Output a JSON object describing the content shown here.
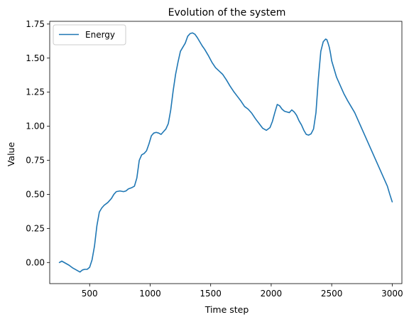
{
  "chart_data": {
    "type": "line",
    "title": "Evolution of the system",
    "xlabel": "Time step",
    "ylabel": "Value",
    "xlim": [
      170,
      3080
    ],
    "ylim": [
      -0.155,
      1.77
    ],
    "xticks": [
      500,
      1000,
      1500,
      2000,
      2500,
      3000
    ],
    "xtick_labels": [
      "500",
      "1000",
      "1500",
      "2000",
      "2500",
      "3000"
    ],
    "yticks": [
      0.0,
      0.25,
      0.5,
      0.75,
      1.0,
      1.25,
      1.5,
      1.75
    ],
    "ytick_labels": [
      "0.00",
      "0.25",
      "0.50",
      "0.75",
      "1.00",
      "1.25",
      "1.50",
      "1.75"
    ],
    "grid": false,
    "legend_position": "top-left",
    "series": [
      {
        "name": "Energy",
        "color": "#1f77b4",
        "x": [
          250,
          270,
          300,
          330,
          360,
          390,
          420,
          440,
          460,
          480,
          500,
          520,
          540,
          560,
          580,
          600,
          620,
          650,
          680,
          700,
          720,
          750,
          780,
          800,
          820,
          850,
          870,
          890,
          910,
          930,
          950,
          970,
          990,
          1010,
          1030,
          1050,
          1070,
          1090,
          1110,
          1130,
          1150,
          1170,
          1190,
          1210,
          1230,
          1250,
          1270,
          1290,
          1310,
          1330,
          1350,
          1370,
          1390,
          1410,
          1430,
          1450,
          1480,
          1510,
          1540,
          1570,
          1600,
          1630,
          1660,
          1690,
          1720,
          1750,
          1780,
          1810,
          1840,
          1870,
          1900,
          1930,
          1960,
          1990,
          2010,
          2030,
          2050,
          2070,
          2090,
          2110,
          2130,
          2150,
          2170,
          2190,
          2210,
          2230,
          2250,
          2270,
          2290,
          2310,
          2330,
          2350,
          2370,
          2390,
          2410,
          2430,
          2450,
          2460,
          2470,
          2480,
          2490,
          2500,
          2520,
          2540,
          2570,
          2600,
          2630,
          2660,
          2690,
          2720,
          2750,
          2780,
          2810,
          2840,
          2870,
          2900,
          2930,
          2960,
          2980,
          3000
        ],
        "y": [
          0.0,
          0.01,
          -0.005,
          -0.02,
          -0.04,
          -0.055,
          -0.07,
          -0.055,
          -0.05,
          -0.05,
          -0.035,
          0.02,
          0.12,
          0.27,
          0.37,
          0.4,
          0.42,
          0.44,
          0.47,
          0.5,
          0.52,
          0.525,
          0.52,
          0.525,
          0.54,
          0.55,
          0.56,
          0.62,
          0.75,
          0.79,
          0.8,
          0.82,
          0.87,
          0.93,
          0.95,
          0.955,
          0.95,
          0.94,
          0.96,
          0.98,
          1.02,
          1.12,
          1.26,
          1.38,
          1.47,
          1.55,
          1.58,
          1.61,
          1.66,
          1.68,
          1.685,
          1.675,
          1.65,
          1.62,
          1.59,
          1.565,
          1.52,
          1.47,
          1.43,
          1.405,
          1.38,
          1.34,
          1.295,
          1.255,
          1.22,
          1.185,
          1.145,
          1.125,
          1.095,
          1.055,
          1.02,
          0.985,
          0.97,
          0.99,
          1.035,
          1.1,
          1.16,
          1.15,
          1.125,
          1.11,
          1.105,
          1.1,
          1.12,
          1.105,
          1.08,
          1.04,
          1.01,
          0.97,
          0.94,
          0.935,
          0.945,
          0.98,
          1.1,
          1.35,
          1.55,
          1.62,
          1.64,
          1.635,
          1.61,
          1.58,
          1.535,
          1.48,
          1.42,
          1.36,
          1.3,
          1.24,
          1.19,
          1.145,
          1.1,
          1.04,
          0.98,
          0.92,
          0.86,
          0.8,
          0.74,
          0.68,
          0.62,
          0.56,
          0.5,
          0.445
        ]
      }
    ]
  }
}
